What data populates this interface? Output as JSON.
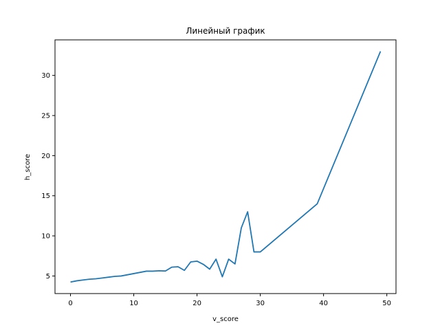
{
  "chart_data": {
    "type": "line",
    "title": "Линейный график",
    "xlabel": "v_score",
    "ylabel": "h_score",
    "xlim": [
      -2.45,
      51.45
    ],
    "ylim": [
      2.81,
      34.43
    ],
    "xticks": [
      0,
      10,
      20,
      30,
      40,
      50
    ],
    "yticks": [
      5,
      10,
      15,
      20,
      25,
      30
    ],
    "grid": false,
    "legend": "none",
    "series": [
      {
        "color": "#1f77b4",
        "x": [
          0,
          1,
          2,
          3,
          4,
          5,
          6,
          7,
          8,
          9,
          10,
          11,
          12,
          13,
          14,
          15,
          16,
          17,
          18,
          19,
          20,
          21,
          22,
          23,
          24,
          25,
          26,
          27,
          28,
          29,
          30,
          39,
          49
        ],
        "y": [
          4.25,
          4.4,
          4.5,
          4.6,
          4.65,
          4.75,
          4.85,
          4.95,
          5.0,
          5.15,
          5.3,
          5.45,
          5.6,
          5.6,
          5.65,
          5.62,
          6.1,
          6.15,
          5.7,
          6.75,
          6.85,
          6.45,
          5.85,
          7.1,
          4.9,
          7.1,
          6.5,
          11.0,
          13.0,
          8.0,
          8.0,
          14.0,
          33.0
        ]
      }
    ]
  }
}
